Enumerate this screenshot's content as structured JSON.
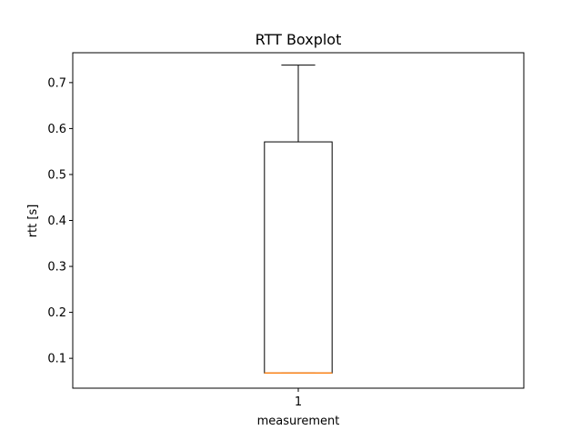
{
  "chart_data": {
    "type": "boxplot",
    "title": "RTT Boxplot",
    "xlabel": "measurement",
    "ylabel": "rtt [s]",
    "categories": [
      "1"
    ],
    "ylim": [
      0.035,
      0.765
    ],
    "yticks": [
      0.1,
      0.2,
      0.3,
      0.4,
      0.5,
      0.6,
      0.7
    ],
    "ytick_labels": [
      "0.1",
      "0.2",
      "0.3",
      "0.4",
      "0.5",
      "0.6",
      "0.7"
    ],
    "boxes": [
      {
        "category": "1",
        "whisker_low": 0.068,
        "q1": 0.068,
        "median": 0.068,
        "q3": 0.571,
        "whisker_high": 0.738
      }
    ],
    "colors": {
      "box": "#000000",
      "median": "#ff7f0e",
      "axes": "#000000"
    },
    "grid": false
  }
}
